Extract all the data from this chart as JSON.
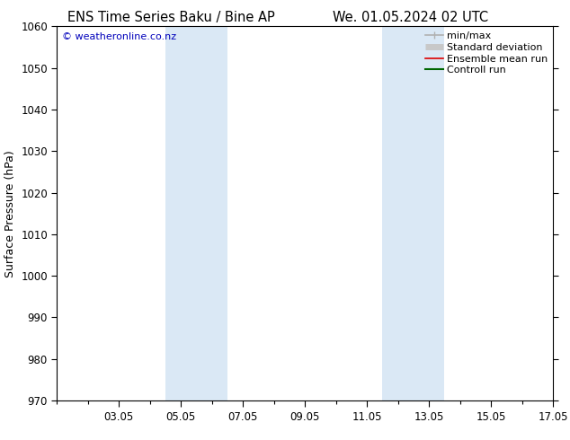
{
  "title_left": "ENS Time Series Baku / Bine AP",
  "title_right": "We. 01.05.2024 02 UTC",
  "ylabel": "Surface Pressure (hPa)",
  "ylim": [
    970,
    1060
  ],
  "yticks": [
    970,
    980,
    990,
    1000,
    1010,
    1020,
    1030,
    1040,
    1050,
    1060
  ],
  "xlim": [
    0,
    16
  ],
  "xtick_labels": [
    "03.05",
    "05.05",
    "07.05",
    "09.05",
    "11.05",
    "13.05",
    "15.05",
    "17.05"
  ],
  "xtick_positions": [
    2,
    4,
    6,
    8,
    10,
    12,
    14,
    16
  ],
  "shaded_regions": [
    {
      "xmin": 3.5,
      "xmax": 5.5,
      "color": "#dae8f5"
    },
    {
      "xmin": 10.5,
      "xmax": 12.5,
      "color": "#dae8f5"
    }
  ],
  "watermark": "© weatheronline.co.nz",
  "watermark_color": "#0000bb",
  "legend_entries": [
    {
      "label": "min/max",
      "color": "#b0b0b0",
      "lw": 1.2,
      "style": "line_with_caps"
    },
    {
      "label": "Standard deviation",
      "color": "#c8c8c8",
      "lw": 5,
      "style": "thick"
    },
    {
      "label": "Ensemble mean run",
      "color": "#dd0000",
      "lw": 1.2,
      "style": "line"
    },
    {
      "label": "Controll run",
      "color": "#006600",
      "lw": 1.5,
      "style": "line"
    }
  ],
  "background_color": "#ffffff",
  "title_fontsize": 10.5,
  "axis_label_fontsize": 9,
  "tick_fontsize": 8.5,
  "watermark_fontsize": 8,
  "legend_fontsize": 8
}
